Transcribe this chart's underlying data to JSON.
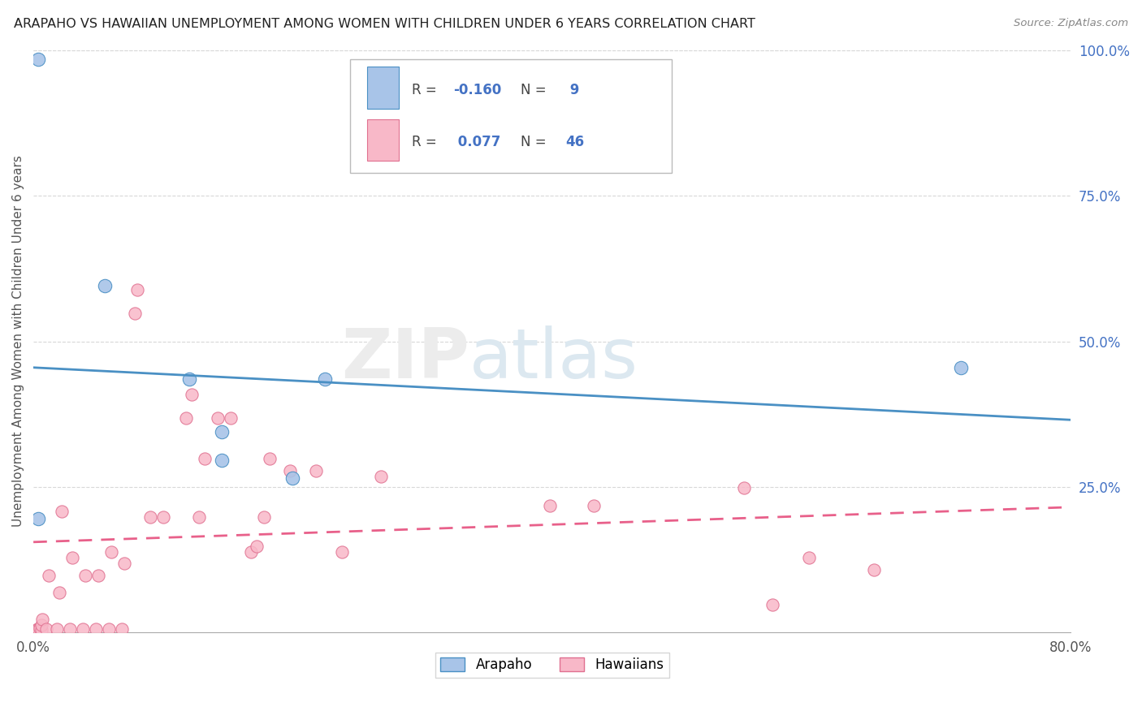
{
  "title": "ARAPAHO VS HAWAIIAN UNEMPLOYMENT AMONG WOMEN WITH CHILDREN UNDER 6 YEARS CORRELATION CHART",
  "source": "Source: ZipAtlas.com",
  "ylabel": "Unemployment Among Women with Children Under 6 years",
  "watermark_zip": "ZIP",
  "watermark_atlas": "atlas",
  "legend_label1": "Arapaho",
  "legend_label2": "Hawaiians",
  "R1": -0.16,
  "N1": 9,
  "R2": 0.077,
  "N2": 46,
  "color_arapaho": "#a8c4e8",
  "color_hawaiian": "#f8b8c8",
  "color_blue_line": "#4a90c4",
  "color_pink_line": "#e8608a",
  "xmin": 0.0,
  "xmax": 0.8,
  "ymin": 0.0,
  "ymax": 1.0,
  "x_ticks": [
    0.0,
    0.1,
    0.2,
    0.3,
    0.4,
    0.5,
    0.6,
    0.7,
    0.8
  ],
  "y_ticks_right": [
    0.0,
    0.25,
    0.5,
    0.75,
    1.0
  ],
  "y_tick_labels_right": [
    "",
    "25.0%",
    "50.0%",
    "75.0%",
    "100.0%"
  ],
  "arapaho_x": [
    0.004,
    0.004,
    0.055,
    0.12,
    0.145,
    0.145,
    0.2,
    0.225,
    0.715
  ],
  "arapaho_y": [
    0.985,
    0.195,
    0.595,
    0.435,
    0.345,
    0.295,
    0.265,
    0.435,
    0.455
  ],
  "hawaiian_x": [
    0.003,
    0.003,
    0.004,
    0.005,
    0.006,
    0.006,
    0.007,
    0.01,
    0.012,
    0.018,
    0.02,
    0.022,
    0.028,
    0.03,
    0.038,
    0.04,
    0.048,
    0.05,
    0.058,
    0.06,
    0.068,
    0.07,
    0.078,
    0.08,
    0.09,
    0.1,
    0.118,
    0.122,
    0.128,
    0.132,
    0.142,
    0.152,
    0.168,
    0.172,
    0.178,
    0.182,
    0.198,
    0.218,
    0.238,
    0.268,
    0.398,
    0.432,
    0.548,
    0.57,
    0.598,
    0.648
  ],
  "hawaiian_y": [
    0.004,
    0.005,
    0.006,
    0.007,
    0.004,
    0.012,
    0.022,
    0.005,
    0.098,
    0.005,
    0.068,
    0.208,
    0.005,
    0.128,
    0.005,
    0.098,
    0.005,
    0.098,
    0.005,
    0.138,
    0.005,
    0.118,
    0.548,
    0.588,
    0.198,
    0.198,
    0.368,
    0.408,
    0.198,
    0.298,
    0.368,
    0.368,
    0.138,
    0.148,
    0.198,
    0.298,
    0.278,
    0.278,
    0.138,
    0.268,
    0.218,
    0.218,
    0.248,
    0.048,
    0.128,
    0.108
  ],
  "blue_line_x": [
    0.0,
    0.8
  ],
  "blue_line_y_start": 0.455,
  "blue_line_y_end": 0.365,
  "pink_line_x": [
    0.0,
    0.8
  ],
  "pink_line_y_start": 0.155,
  "pink_line_y_end": 0.215,
  "grid_color": "#d8d8d8",
  "text_color_blue": "#4472c4",
  "text_color_dark": "#444444"
}
